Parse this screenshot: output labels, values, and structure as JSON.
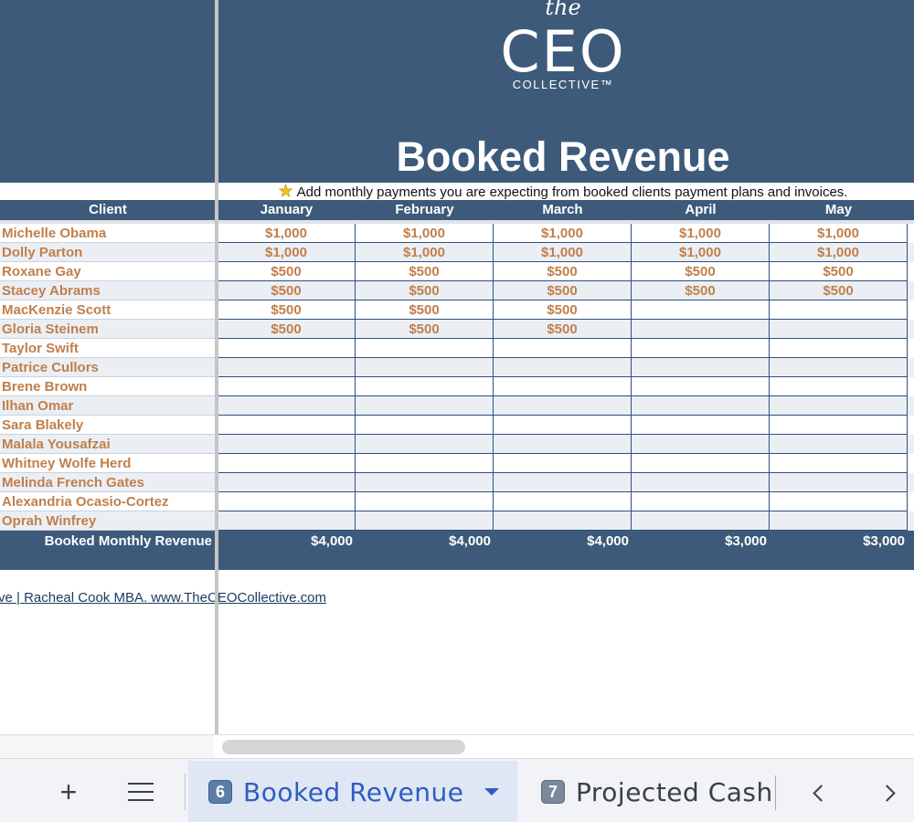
{
  "brand": {
    "the": "the",
    "ceo": "CEO",
    "collective": "COLLECTIVE™"
  },
  "title": "Booked Revenue",
  "instructions": "Add monthly payments you are expecting from booked clients payment plans and invoices.",
  "header": {
    "client": "Client",
    "months": [
      "January",
      "February",
      "March",
      "April",
      "May"
    ]
  },
  "clients": [
    {
      "name": "Michelle Obama",
      "values": [
        "$1,000",
        "$1,000",
        "$1,000",
        "$1,000",
        "$1,000"
      ]
    },
    {
      "name": "Dolly Parton",
      "values": [
        "$1,000",
        "$1,000",
        "$1,000",
        "$1,000",
        "$1,000"
      ]
    },
    {
      "name": "Roxane Gay",
      "values": [
        "$500",
        "$500",
        "$500",
        "$500",
        "$500"
      ]
    },
    {
      "name": "Stacey Abrams",
      "values": [
        "$500",
        "$500",
        "$500",
        "$500",
        "$500"
      ]
    },
    {
      "name": "MacKenzie Scott",
      "values": [
        "$500",
        "$500",
        "$500",
        "",
        ""
      ]
    },
    {
      "name": "Gloria Steinem",
      "values": [
        "$500",
        "$500",
        "$500",
        "",
        ""
      ]
    },
    {
      "name": "Taylor Swift",
      "values": [
        "",
        "",
        "",
        "",
        ""
      ]
    },
    {
      "name": "Patrice Cullors",
      "values": [
        "",
        "",
        "",
        "",
        ""
      ]
    },
    {
      "name": "Brene Brown",
      "values": [
        "",
        "",
        "",
        "",
        ""
      ]
    },
    {
      "name": "Ilhan Omar",
      "values": [
        "",
        "",
        "",
        "",
        ""
      ]
    },
    {
      "name": "Sara Blakely",
      "values": [
        "",
        "",
        "",
        "",
        ""
      ]
    },
    {
      "name": "Malala Yousafzai",
      "values": [
        "",
        "",
        "",
        "",
        ""
      ]
    },
    {
      "name": "Whitney Wolfe Herd",
      "values": [
        "",
        "",
        "",
        "",
        ""
      ]
    },
    {
      "name": "Melinda French Gates",
      "values": [
        "",
        "",
        "",
        "",
        ""
      ]
    },
    {
      "name": "Alexandria Ocasio-Cortez",
      "values": [
        "",
        "",
        "",
        "",
        ""
      ]
    },
    {
      "name": "Oprah Winfrey",
      "values": [
        "",
        "",
        "",
        "",
        ""
      ]
    }
  ],
  "totals": {
    "label": "Booked Monthly Revenue",
    "values": [
      "$4,000",
      "$4,000",
      "$4,000",
      "$3,000",
      "$3,000"
    ]
  },
  "footer": {
    "link_text": "ve | Racheal Cook MBA. www.TheCEOCollective.com"
  },
  "tabs": [
    {
      "number": "6",
      "label": "Booked Revenue",
      "active": true
    },
    {
      "number": "7",
      "label": "Projected Cash",
      "active": false
    }
  ],
  "colors": {
    "header_bg": "#3d5a7a",
    "client_text": "#c07f4b",
    "alt_row": "#ebeff4",
    "active_tab": "#2f5dbf"
  },
  "icons": {
    "star": "star-icon",
    "add_sheet": "plus-icon",
    "all_sheets": "list-icon",
    "tab_menu": "caret-down-icon",
    "prev": "chevron-left-icon",
    "next": "chevron-right-icon"
  }
}
